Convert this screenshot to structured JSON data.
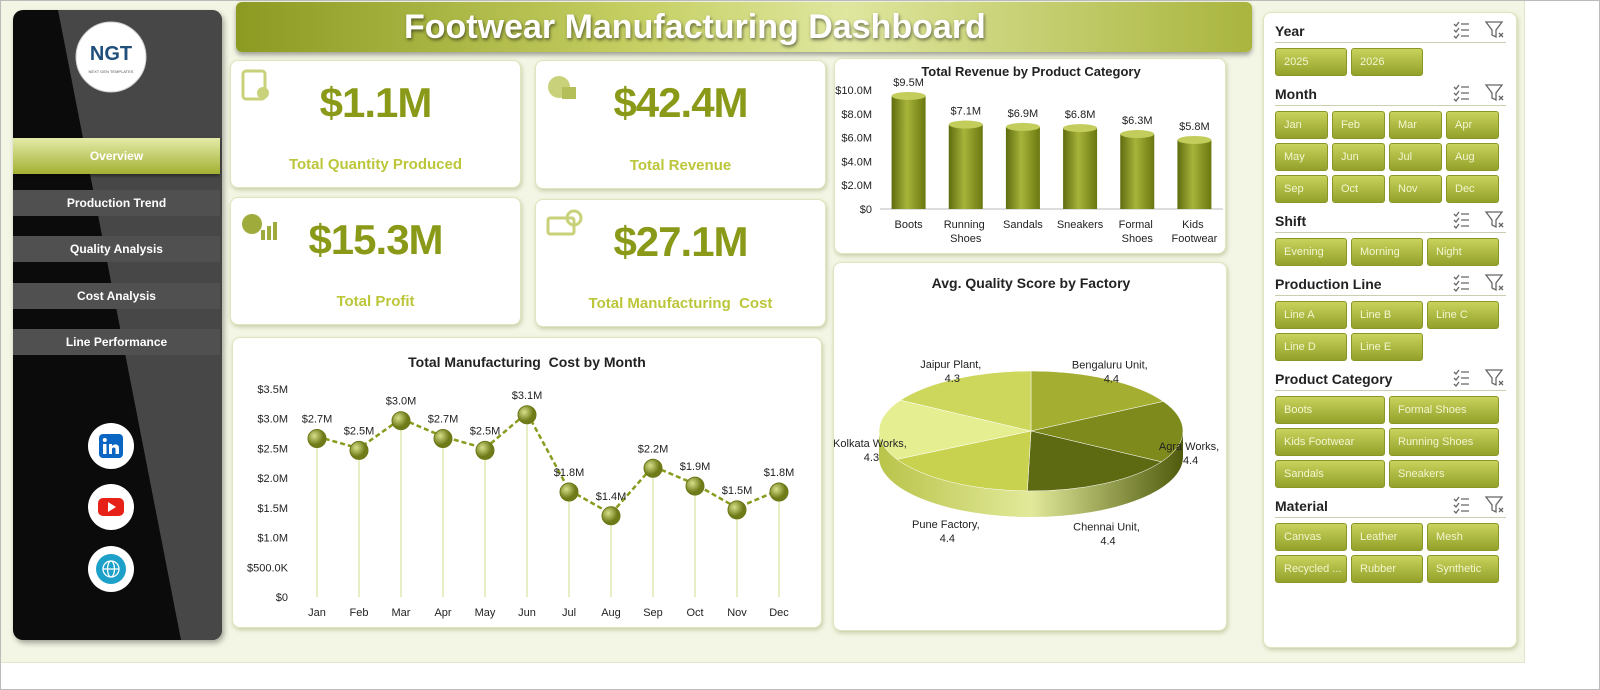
{
  "header": {
    "title": "Footwear Manufacturing Dashboard"
  },
  "logo": {
    "text": "NGT",
    "tagline": "NEXT GEN TEMPLATES"
  },
  "nav": [
    "Overview",
    "Production Trend",
    "Quality Analysis",
    "Cost Analysis",
    "Line Performance"
  ],
  "kpis": [
    {
      "value": "$1.1M",
      "label": "Total Quantity Produced"
    },
    {
      "value": "$42.4M",
      "label": "Total Revenue"
    },
    {
      "value": "$15.3M",
      "label": "Total Profit"
    },
    {
      "value": "$27.1M",
      "label": "Total Manufacturing  Cost"
    }
  ],
  "chart_data": [
    {
      "type": "bar",
      "title": "Total Revenue by Product Category",
      "categories": [
        "Boots",
        "Running Shoes",
        "Sandals",
        "Sneakers",
        "Formal Shoes",
        "Kids Footwear"
      ],
      "values": [
        9500000,
        7100000,
        6900000,
        6800000,
        6300000,
        5800000
      ],
      "value_labels": [
        "$9.5M",
        "$7.1M",
        "$6.9M",
        "$6.8M",
        "$6.3M",
        "$5.8M"
      ],
      "color": "#8a9a1c",
      "ylim": [
        0,
        10000000
      ],
      "yticks": [
        {
          "value": 0,
          "label": "$0"
        },
        {
          "value": 2000000,
          "label": "$2.0M"
        },
        {
          "value": 4000000,
          "label": "$4.0M"
        },
        {
          "value": 6000000,
          "label": "$6.0M"
        },
        {
          "value": 8000000,
          "label": "$8.0M"
        },
        {
          "value": 10000000,
          "label": "$10.0M"
        }
      ]
    },
    {
      "type": "line",
      "title": "Total Manufacturing  Cost by Month",
      "categories": [
        "Jan",
        "Feb",
        "Mar",
        "Apr",
        "May",
        "Jun",
        "Jul",
        "Aug",
        "Sep",
        "Oct",
        "Nov",
        "Dec"
      ],
      "values": [
        2700000,
        2500000,
        3000000,
        2700000,
        2500000,
        3100000,
        1800000,
        1400000,
        2200000,
        1900000,
        1500000,
        1800000
      ],
      "value_labels": [
        "$2.7M",
        "$2.5M",
        "$3.0M",
        "$2.7M",
        "$2.5M",
        "$3.1M",
        "$1.8M",
        "$1.4M",
        "$2.2M",
        "$1.9M",
        "$1.5M",
        "$1.8M"
      ],
      "color": "#8a9a1c",
      "ylim": [
        0,
        3500000
      ],
      "yticks": [
        {
          "value": 0,
          "label": "$0"
        },
        {
          "value": 500000,
          "label": "$500.0K"
        },
        {
          "value": 1000000,
          "label": "$1.0M"
        },
        {
          "value": 1500000,
          "label": "$1.5M"
        },
        {
          "value": 2000000,
          "label": "$2.0M"
        },
        {
          "value": 2500000,
          "label": "$2.5M"
        },
        {
          "value": 3000000,
          "label": "$3.0M"
        },
        {
          "value": 3500000,
          "label": "$3.5M"
        }
      ]
    },
    {
      "type": "pie",
      "title": "Avg. Quality Score by Factory",
      "categories": [
        "Bengaluru Unit",
        "Agra Works",
        "Chennai Unit",
        "Pune Factory",
        "Kolkata Works",
        "Jaipur Plant"
      ],
      "values": [
        4.4,
        4.4,
        4.4,
        4.4,
        4.3,
        4.3
      ],
      "value_labels": [
        "Bengaluru Unit, 4.4",
        "Agra Works, 4.4",
        "Chennai Unit, 4.4",
        "Pune Factory, 4.4",
        "Kolkata Works, 4.3",
        "Jaipur Plant, 4.3"
      ],
      "colors": [
        "#a4ae30",
        "#7e8b1c",
        "#5e6a12",
        "#c8d24e",
        "#e6ee92",
        "#ccd75c"
      ]
    }
  ],
  "slicers": [
    {
      "title": "Year",
      "items": [
        "2025",
        "2026"
      ]
    },
    {
      "title": "Month",
      "items": [
        "Jan",
        "Feb",
        "Mar",
        "Apr",
        "May",
        "Jun",
        "Jul",
        "Aug",
        "Sep",
        "Oct",
        "Nov",
        "Dec"
      ]
    },
    {
      "title": "Shift",
      "items": [
        "Evening",
        "Morning",
        "Night"
      ]
    },
    {
      "title": "Production Line",
      "items": [
        "Line A",
        "Line B",
        "Line C",
        "Line D",
        "Line E"
      ]
    },
    {
      "title": "Product Category",
      "items": [
        "Boots",
        "Formal Shoes",
        "Kids Footwear",
        "Running Shoes",
        "Sandals",
        "Sneakers"
      ]
    },
    {
      "title": "Material",
      "items": [
        "Canvas",
        "Leather",
        "Mesh",
        "Recycled ...",
        "Rubber",
        "Synthetic"
      ]
    }
  ]
}
